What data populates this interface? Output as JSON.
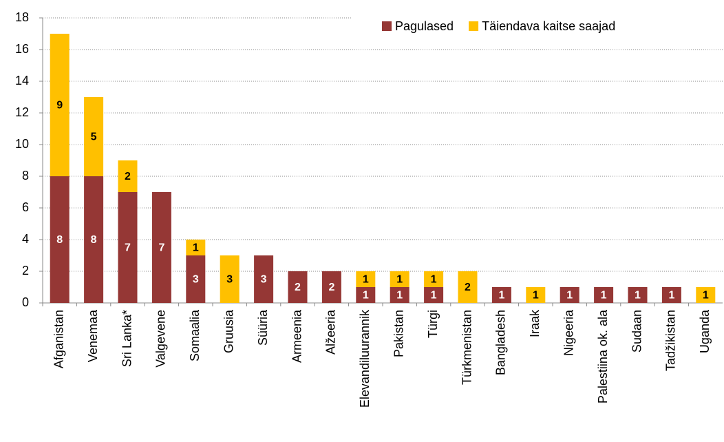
{
  "chart_data": {
    "type": "stacked_bar",
    "categories": [
      "Afganistan",
      "Venemaa",
      "Sri Lanka*",
      "Valgevene",
      "Somaalia",
      "Gruusia",
      "Süüria",
      "Armeenia",
      "Alžeeria",
      "Elevandiluurannik",
      "Pakistan",
      "Türgi",
      "Türkmenistan",
      "Bangladesh",
      "Iraak",
      "Nigeeria",
      "Palestiina ok. ala",
      "Sudaan",
      "Tadžikistan",
      "Uganda"
    ],
    "series": [
      {
        "name": "Pagulased",
        "color": "#953735",
        "label_color": "#ffffff",
        "values": [
          8,
          8,
          7,
          7,
          3,
          0,
          3,
          2,
          2,
          1,
          1,
          1,
          0,
          1,
          0,
          1,
          1,
          1,
          1,
          0
        ]
      },
      {
        "name": "Täiendava kaitse saajad",
        "color": "#ffc000",
        "label_color": "#000000",
        "values": [
          9,
          5,
          2,
          0,
          1,
          3,
          0,
          0,
          0,
          1,
          1,
          1,
          2,
          0,
          1,
          0,
          0,
          0,
          0,
          1
        ]
      }
    ],
    "ylim": [
      0,
      18
    ],
    "yticks": [
      0,
      2,
      4,
      6,
      8,
      10,
      12,
      14,
      16,
      18
    ],
    "grid": true,
    "legend": "top-right"
  }
}
